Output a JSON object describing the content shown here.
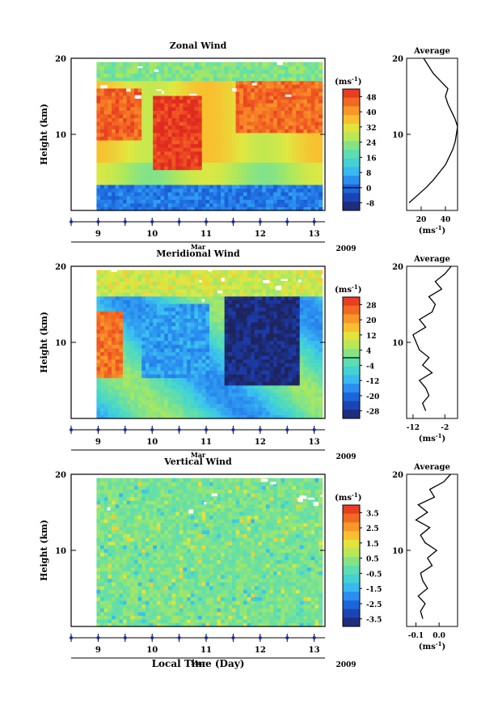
{
  "figure": {
    "xlabel": "Local Time (Day)",
    "month": "Mar",
    "year": "2009"
  },
  "colorbar_unit": "(ms",
  "colorbar_unit_sup": "-1",
  "colorbar_unit_close": ")",
  "profile_title": "Average",
  "profile_unit": "(ms",
  "profile_unit_sup": "-1",
  "profile_unit_close": ")",
  "ylabel": "Height (km)",
  "chart_data": [
    {
      "type": "heatmap",
      "title": "Zonal Wind",
      "ylabel": "Height (km)",
      "xlabel": "Mar",
      "x_ticks": [
        "9",
        "10",
        "11",
        "12",
        "13"
      ],
      "xlim": [
        8.5,
        13.2
      ],
      "y_ticks": [
        "10",
        "20"
      ],
      "ylim": [
        0,
        20
      ],
      "colorbar": {
        "levels": [
          -8,
          0,
          8,
          16,
          24,
          32,
          40,
          48
        ],
        "labels": [
          "-8",
          "0",
          "8",
          "16",
          "24",
          "32",
          "40",
          "48"
        ],
        "zero_line": 0,
        "range": [
          -12,
          52
        ]
      },
      "features": [
        {
          "desc": "strong westerly jet core",
          "x": [
            10.0,
            10.9
          ],
          "y": [
            5,
            15
          ],
          "value": 50
        },
        {
          "desc": "strong jet",
          "x": [
            8.5,
            9.8
          ],
          "y": [
            9,
            16
          ],
          "value": 46
        },
        {
          "desc": "strong jet",
          "x": [
            11.5,
            13.1
          ],
          "y": [
            10,
            17
          ],
          "value": 45
        },
        {
          "desc": "weak winds near surface",
          "x": [
            8.5,
            13.1
          ],
          "y": [
            0,
            3
          ],
          "value": 2
        }
      ],
      "profile": {
        "title": "Average",
        "x_ticks": [
          "20",
          "40"
        ],
        "xlim": [
          8,
          50
        ],
        "heights": [
          1,
          2,
          3,
          4,
          5,
          6,
          7,
          8,
          9,
          10,
          11,
          12,
          13,
          14,
          15,
          16,
          17,
          18,
          19,
          20
        ],
        "values": [
          10,
          17,
          24,
          30,
          35,
          40,
          43,
          46,
          48,
          49,
          50,
          48,
          45,
          42,
          40,
          42,
          36,
          30,
          26,
          22
        ]
      }
    },
    {
      "type": "heatmap",
      "title": "Meridional Wind",
      "ylabel": "Height (km)",
      "xlabel": "Mar",
      "x_ticks": [
        "9",
        "10",
        "11",
        "12",
        "13"
      ],
      "xlim": [
        8.5,
        13.2
      ],
      "y_ticks": [
        "10",
        "20"
      ],
      "ylim": [
        0,
        20
      ],
      "colorbar": {
        "levels": [
          -28,
          -20,
          -12,
          -4,
          4,
          12,
          20,
          28
        ],
        "labels": [
          "-28",
          "-20",
          "-12",
          "-4",
          "4",
          "12",
          "20",
          "28"
        ],
        "zero_line": 0,
        "range": [
          -32,
          32
        ]
      },
      "features": [
        {
          "desc": "strong southerly",
          "x": [
            8.7,
            9.4
          ],
          "y": [
            5,
            14
          ],
          "value": 24
        },
        {
          "desc": "strong northerly",
          "x": [
            11.3,
            12.7
          ],
          "y": [
            4,
            19
          ],
          "value": -30
        },
        {
          "desc": "northerly",
          "x": [
            9.8,
            11.0
          ],
          "y": [
            5,
            15
          ],
          "value": -14
        }
      ],
      "profile": {
        "title": "Average",
        "x_ticks": [
          "-12",
          "-2"
        ],
        "xlim": [
          -14,
          2
        ],
        "heights": [
          1,
          2,
          3,
          4,
          5,
          6,
          7,
          8,
          9,
          10,
          11,
          12,
          13,
          14,
          15,
          16,
          17,
          18,
          19,
          20
        ],
        "values": [
          -8,
          -9,
          -7,
          -8,
          -10,
          -6,
          -9,
          -7,
          -10,
          -11,
          -12,
          -8,
          -10,
          -6,
          -5,
          -7,
          -3,
          -5,
          -2,
          0
        ]
      }
    },
    {
      "type": "heatmap",
      "title": "Vertical Wind",
      "ylabel": "Height (km)",
      "xlabel": "Mar",
      "x_ticks": [
        "9",
        "10",
        "11",
        "12",
        "13"
      ],
      "xlim": [
        8.5,
        13.2
      ],
      "y_ticks": [
        "10",
        "20"
      ],
      "ylim": [
        0,
        20
      ],
      "colorbar": {
        "levels": [
          -3.5,
          -2.5,
          -1.5,
          -0.5,
          0.5,
          1.5,
          2.5,
          3.5
        ],
        "labels": [
          "-3.5",
          "-2.5",
          "-1.5",
          "-0.5",
          "0.5",
          "1.5",
          "2.5",
          "3.5"
        ],
        "range": [
          -4,
          4
        ]
      },
      "features": [
        {
          "desc": "near-zero vertical wind everywhere",
          "x": [
            8.5,
            13.1
          ],
          "y": [
            0,
            20
          ],
          "value": 0
        }
      ],
      "profile": {
        "title": "Average",
        "x_ticks": [
          "-0.1",
          "0.0"
        ],
        "xlim": [
          -0.14,
          0.08
        ],
        "heights": [
          1,
          2,
          3,
          4,
          5,
          6,
          7,
          8,
          9,
          10,
          11,
          12,
          13,
          14,
          15,
          16,
          17,
          18,
          19,
          20
        ],
        "values": [
          -0.07,
          -0.08,
          -0.06,
          -0.09,
          -0.05,
          -0.07,
          -0.08,
          -0.03,
          -0.05,
          -0.01,
          -0.06,
          -0.08,
          -0.04,
          -0.1,
          -0.05,
          -0.09,
          -0.02,
          -0.04,
          0.02,
          0.05
        ]
      }
    }
  ]
}
